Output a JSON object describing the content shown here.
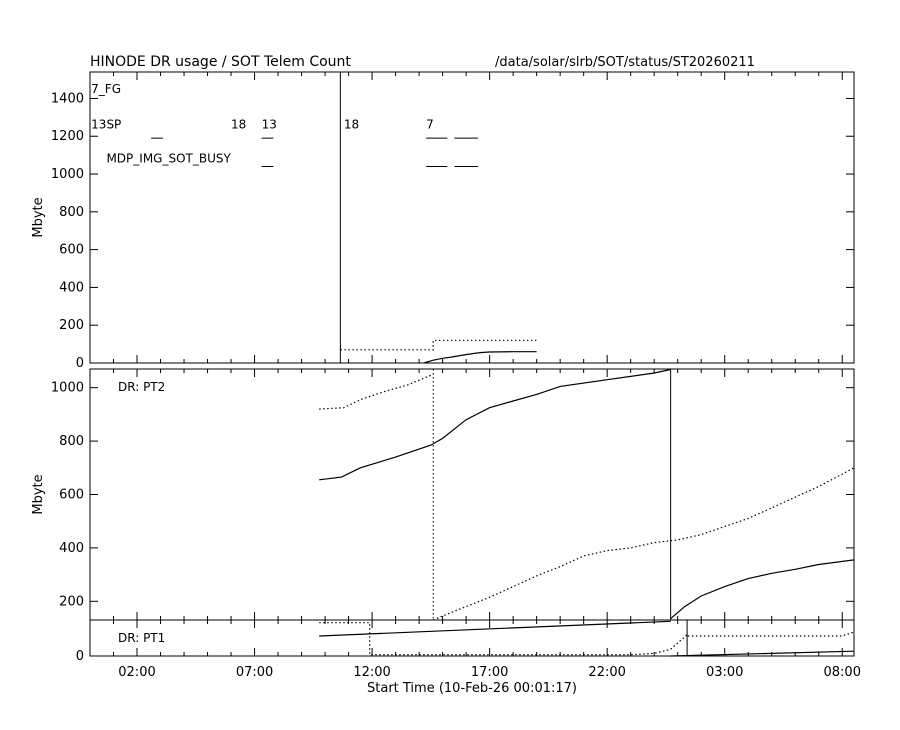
{
  "header": {
    "title": "HINODE DR usage / SOT Telem Count",
    "path": "/data/solar/slrb/SOT/status/ST20260211"
  },
  "chart_data": [
    {
      "type": "line",
      "panel": "SOT Telem Count",
      "ylabel": "Mbyte",
      "ylim": [
        0,
        1540
      ],
      "yticks": [
        0,
        200,
        400,
        600,
        800,
        1000,
        1200,
        1400
      ],
      "x_unit": "hours since 10-Feb-26 00:00",
      "xlim": [
        0,
        32.5
      ],
      "annotations": [
        {
          "text": "7_FG",
          "x": 0.05,
          "y": 1430
        },
        {
          "text": "13SP",
          "x": 0.05,
          "y": 1240
        },
        {
          "text": "MDP_IMG_SOT_BUSY",
          "x": 0.7,
          "y": 1060
        },
        {
          "text": "18",
          "x": 6.0,
          "y": 1240
        },
        {
          "text": "13",
          "x": 7.3,
          "y": 1240
        },
        {
          "text": "18",
          "x": 10.8,
          "y": 1240
        },
        {
          "text": "7",
          "x": 14.3,
          "y": 1240
        }
      ],
      "marks": [
        {
          "x0": 2.6,
          "x1": 3.1,
          "y": 1190
        },
        {
          "x0": 7.3,
          "x1": 7.8,
          "y": 1190
        },
        {
          "x0": 14.3,
          "x1": 15.2,
          "y": 1190
        },
        {
          "x0": 15.5,
          "x1": 16.5,
          "y": 1190
        },
        {
          "x0": 7.3,
          "x1": 7.8,
          "y": 1040
        },
        {
          "x0": 14.3,
          "x1": 15.2,
          "y": 1040
        },
        {
          "x0": 15.5,
          "x1": 16.5,
          "y": 1040
        }
      ],
      "series": [
        {
          "style": "solid",
          "x": [
            14.2,
            14.6,
            15.0,
            15.4,
            15.8,
            16.2,
            16.6,
            17.0,
            18.0,
            19.0
          ],
          "y": [
            0,
            15,
            25,
            32,
            40,
            48,
            55,
            58,
            60,
            60
          ]
        },
        {
          "style": "dotted",
          "x": [
            10.65,
            14.6,
            14.6,
            19.0
          ],
          "y": [
            70,
            70,
            120,
            120
          ]
        }
      ],
      "vlines": [
        {
          "x": 10.65,
          "style": "solid"
        }
      ]
    },
    {
      "type": "line",
      "panel": "DR: PT2",
      "label": "DR: PT2",
      "ylabel": "Mbyte",
      "ylim": [
        130,
        1070
      ],
      "yticks": [
        200,
        400,
        600,
        800,
        1000
      ],
      "xlim": [
        0,
        32.5
      ],
      "series": [
        {
          "style": "solid",
          "x": [
            9.75,
            10.7,
            11.5,
            13.0,
            14.5,
            15.0,
            16.0,
            17.0,
            18.0,
            19.0,
            20.0,
            22.0,
            24.0,
            24.7
          ],
          "y": [
            655,
            665,
            700,
            740,
            785,
            810,
            880,
            925,
            950,
            975,
            1005,
            1030,
            1055,
            1068
          ]
        },
        {
          "style": "solid",
          "x": [
            24.7,
            25.3,
            26.0,
            27.0,
            28.0,
            29.0,
            30.0,
            31.0,
            32.5
          ],
          "y": [
            135,
            180,
            220,
            255,
            285,
            305,
            320,
            338,
            355
          ]
        },
        {
          "style": "dotted",
          "x": [
            9.75,
            10.8,
            11.5,
            12.5,
            13.5,
            14.6
          ],
          "y": [
            920,
            925,
            955,
            985,
            1010,
            1050
          ]
        },
        {
          "style": "dotted",
          "x": [
            14.6,
            15.0,
            16.0,
            17.0,
            18.0,
            19.0,
            20.0,
            21.0,
            22.0,
            23.0,
            24.0,
            25.0,
            26.0,
            27.0,
            28.0,
            29.0,
            30.0,
            31.0,
            32.5
          ],
          "y": [
            130,
            145,
            180,
            215,
            255,
            295,
            330,
            370,
            390,
            400,
            420,
            430,
            450,
            480,
            510,
            550,
            590,
            630,
            700
          ]
        }
      ],
      "vlines": [
        {
          "x": 14.6,
          "style": "dotted"
        },
        {
          "x": 24.7,
          "style": "solid"
        }
      ]
    },
    {
      "type": "line",
      "panel": "DR: PT1",
      "label": "DR: PT1",
      "ylim": [
        0,
        135
      ],
      "yticks": [
        0
      ],
      "xticks": [
        2,
        7,
        12,
        17,
        22,
        27,
        32
      ],
      "xtick_labels": [
        "02:00",
        "07:00",
        "12:00",
        "17:00",
        "22:00",
        "03:00",
        "08:00"
      ],
      "xlabel": "Start Time (10-Feb-26 00:01:17)",
      "xlim": [
        0,
        32.5
      ],
      "series": [
        {
          "style": "solid",
          "x": [
            9.75,
            24.7
          ],
          "y": [
            75,
            130
          ]
        },
        {
          "style": "solid",
          "x": [
            24.7,
            32.5
          ],
          "y": [
            0,
            18
          ]
        },
        {
          "style": "dotted",
          "x": [
            9.75,
            11.9,
            11.9,
            23.0,
            24.0,
            24.7,
            25.4,
            25.4,
            32.0,
            32.5
          ],
          "y": [
            125,
            125,
            5,
            5,
            10,
            25,
            80,
            75,
            75,
            90
          ]
        }
      ],
      "vlines": [
        {
          "x": 25.4,
          "style": "solid"
        }
      ]
    }
  ]
}
